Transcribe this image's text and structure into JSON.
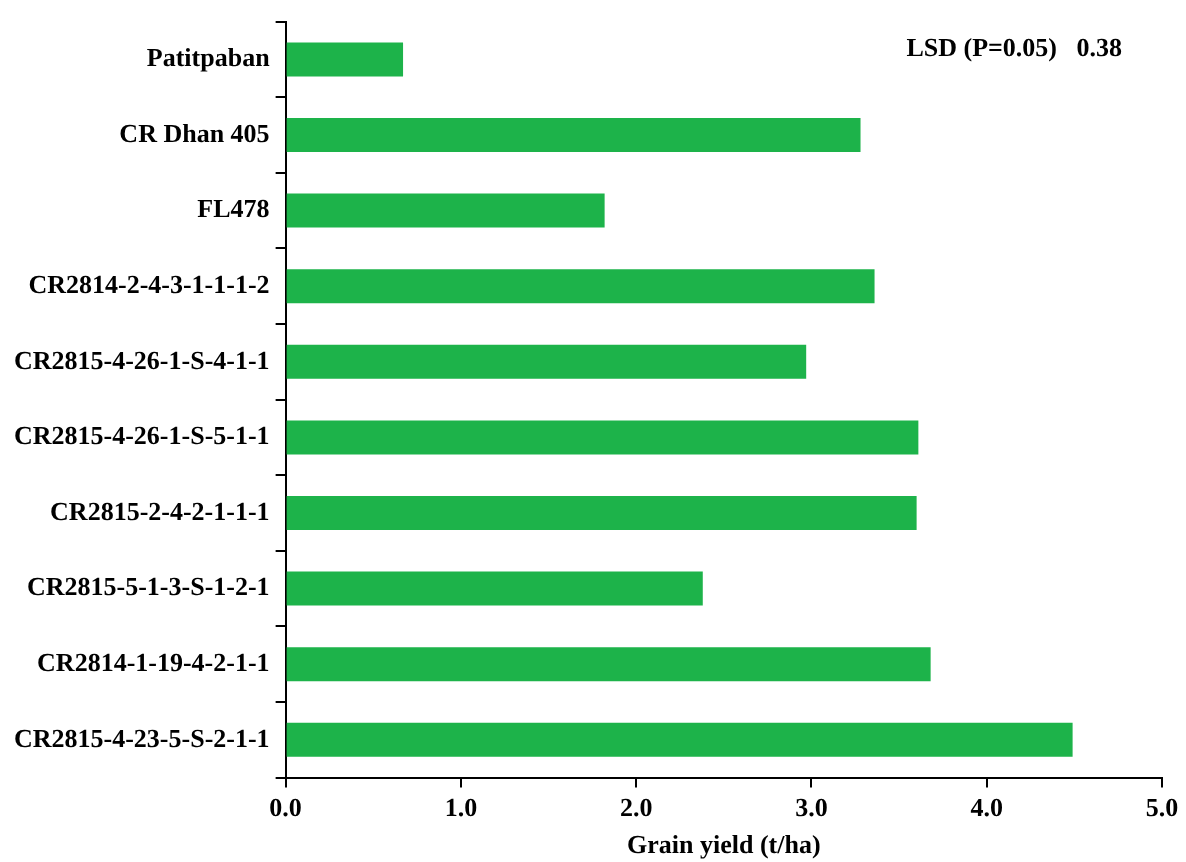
{
  "chart_data": {
    "type": "bar",
    "orientation": "horizontal",
    "xlabel": "Grain yield (t/ha)",
    "categories": [
      "Patitpaban",
      "CR Dhan 405",
      "FL478",
      "CR2814-2-4-3-1-1-1-2",
      "CR2815-4-26-1-S-4-1-1",
      "CR2815-4-26-1-S-5-1-1",
      "CR2815-2-4-2-1-1-1",
      "CR2815-5-1-3-S-1-2-1",
      "CR2814-1-19-4-2-1-1",
      "CR2815-4-23-5-S-2-1-1"
    ],
    "values": [
      0.67,
      3.28,
      1.82,
      3.36,
      2.97,
      3.61,
      3.6,
      2.38,
      3.68,
      4.49
    ],
    "color": "#1db34a",
    "xlim": [
      0,
      5
    ],
    "xticks": [
      {
        "value": 0,
        "label": "0.0"
      },
      {
        "value": 1,
        "label": "1.0"
      },
      {
        "value": 2,
        "label": "2.0"
      },
      {
        "value": 3,
        "label": "3.0"
      },
      {
        "value": 4,
        "label": "4.0"
      },
      {
        "value": 5,
        "label": "5.0"
      }
    ],
    "annotations": [
      "LSD (P=0.05)   0.38"
    ],
    "grid": false,
    "legend": false
  }
}
